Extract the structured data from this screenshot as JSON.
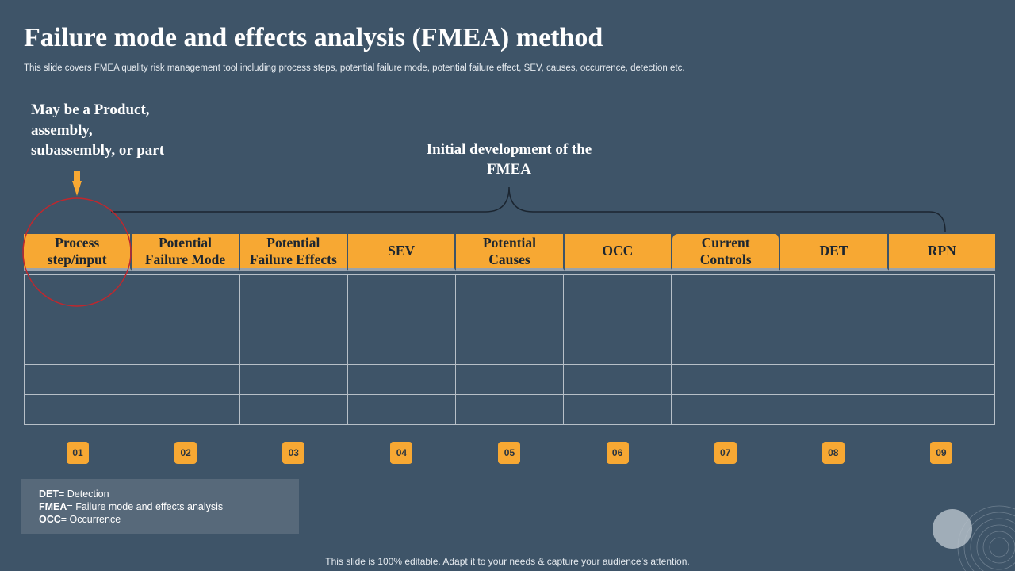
{
  "slide": {
    "title": "Failure mode and  effects analysis (FMEA) method",
    "subtitle": "This slide covers FMEA  quality risk management tool including process steps, potential failure mode, potential failure effect, SEV,  causes, occurrence, detection etc.",
    "footer": "This slide is 100% editable. Adapt it to your needs & capture your audience’s attention."
  },
  "callouts": {
    "left_lines": [
      "May be a Product,",
      "assembly,",
      "subassembly,  or part"
    ],
    "center_lines": [
      "Initial  development  of the",
      "FMEA"
    ]
  },
  "table": {
    "headers": [
      {
        "lines": [
          "Process",
          "step/input"
        ]
      },
      {
        "lines": [
          "Potential",
          "Failure Mode"
        ]
      },
      {
        "lines": [
          "Potential",
          "Failure Effects"
        ]
      },
      {
        "lines": [
          "SEV"
        ]
      },
      {
        "lines": [
          "Potential",
          "Causes"
        ]
      },
      {
        "lines": [
          "OCC"
        ]
      },
      {
        "lines": [
          "Current",
          "Controls"
        ]
      },
      {
        "lines": [
          "DET"
        ]
      },
      {
        "lines": [
          "RPN"
        ]
      }
    ],
    "empty_row_count": 5,
    "numbers": [
      "01",
      "02",
      "03",
      "04",
      "05",
      "06",
      "07",
      "08",
      "09"
    ]
  },
  "legend": [
    {
      "abbr": "DET",
      "meaning": "= Detection"
    },
    {
      "abbr": "FMEA",
      "meaning": "= Failure  mode  and  effects  analysis"
    },
    {
      "abbr": "OCC",
      "meaning": "= Occurrence"
    }
  ],
  "colors": {
    "background": "#3e5468",
    "accent": "#f7a833",
    "highlight_circle": "#c0272d",
    "legend_box": "#57697a"
  },
  "icons": {
    "pointer": "down-pointer-icon",
    "decoration": "concentric-circles-decoration"
  }
}
